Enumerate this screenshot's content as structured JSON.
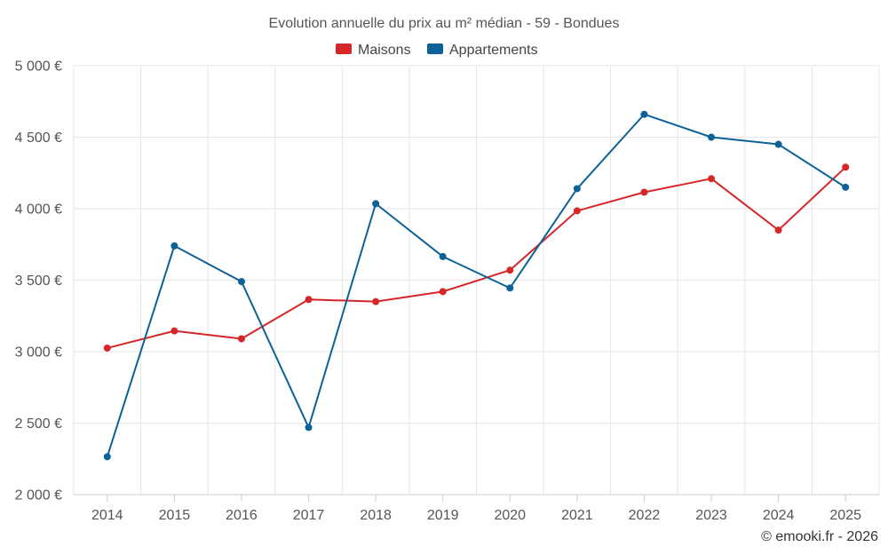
{
  "chart_data": {
    "type": "line",
    "title": "Evolution annuelle du prix au m² médian - 59 - Bondues",
    "xlabel": "",
    "ylabel": "",
    "categories": [
      "2014",
      "2015",
      "2016",
      "2017",
      "2018",
      "2019",
      "2020",
      "2021",
      "2022",
      "2023",
      "2024",
      "2025"
    ],
    "ylim": [
      2000,
      5000
    ],
    "yticks": [
      2000,
      2500,
      3000,
      3500,
      4000,
      4500,
      5000
    ],
    "ytick_labels": [
      "2 000 €",
      "2 500 €",
      "3 000 €",
      "3 500 €",
      "4 000 €",
      "4 500 €",
      "5 000 €"
    ],
    "legend_position": "top-center",
    "grid": true,
    "series": [
      {
        "name": "Maisons",
        "color": "#d62728",
        "values": [
          3025,
          3145,
          3090,
          3365,
          3350,
          3420,
          3570,
          3985,
          4115,
          4210,
          3850,
          4290
        ]
      },
      {
        "name": "Appartements",
        "color": "#0c6296",
        "values": [
          2265,
          3740,
          3490,
          2470,
          4035,
          3665,
          3445,
          4140,
          4660,
          4500,
          4450,
          4150
        ]
      }
    ],
    "credit": "© emooki.fr - 2026"
  }
}
